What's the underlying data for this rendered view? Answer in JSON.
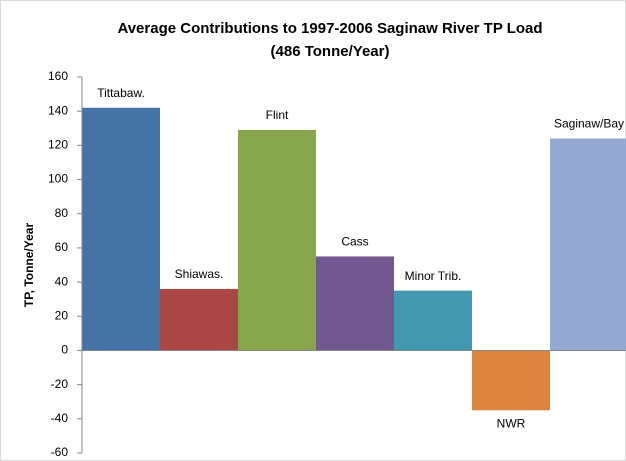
{
  "chart_data": {
    "type": "bar",
    "title": "Average Contributions to 1997-2006 Saginaw River TP Load",
    "subtitle": "(486 Tonne/Year)",
    "y_label": "TP, Tonne/Year",
    "categories": [
      "Tittabaw.",
      "Shiawas.",
      "Flint",
      "Cass",
      "Minor Trib.",
      "NWR",
      "Saginaw/Bay"
    ],
    "values": [
      142,
      36,
      129,
      55,
      35,
      -35,
      124
    ],
    "colors": [
      "#4572a7",
      "#aa4643",
      "#89a54e",
      "#71588f",
      "#4198af",
      "#db843d",
      "#93a9cf"
    ],
    "ylim": [
      -60,
      160
    ],
    "yticks": [
      -60,
      -40,
      -20,
      0,
      20,
      40,
      60,
      80,
      100,
      120,
      140,
      160
    ],
    "grid": false
  }
}
